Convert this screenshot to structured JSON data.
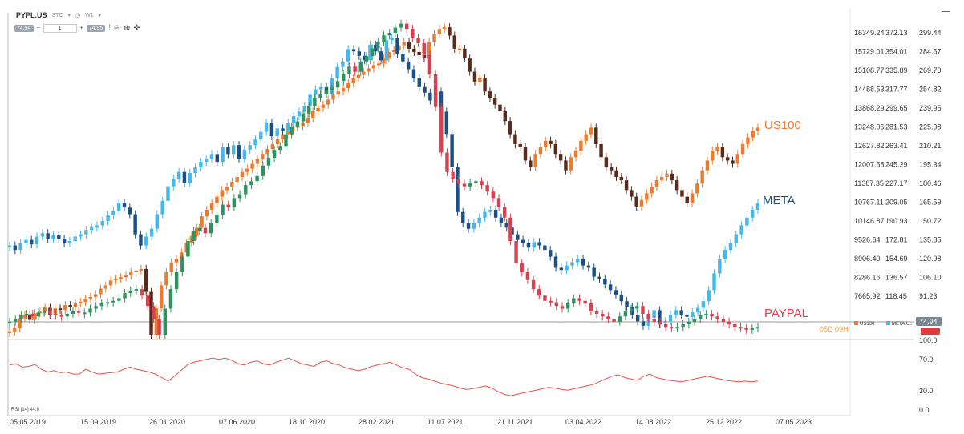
{
  "toolbar": {
    "symbol": "PYPL.US",
    "type": "STC",
    "timeframe": "W1",
    "bid": "74.94",
    "ask": "74.95",
    "qty": "1",
    "minus": "−",
    "plus": "+"
  },
  "colors": {
    "us100": "#ee7a2e",
    "meta": "#1b4f86",
    "meta_up": "#44b8ec",
    "paypal": "#d9414f",
    "paypal_up": "#2d9460",
    "us100_down": "#5a2a1a",
    "rsi": "#e8514d",
    "axis_text": "#333333",
    "grid": "#e6e6e6"
  },
  "chart_data": {
    "type": "candlestick",
    "series": [
      {
        "name": "US100",
        "scale": "left",
        "points": [
          7100,
          7200,
          7500,
          7600,
          7450,
          7650,
          7700,
          7820,
          7600,
          7800,
          7750,
          7900,
          7850,
          7950,
          8000,
          8100,
          8150,
          8230,
          8400,
          8500,
          8650,
          8700,
          8750,
          8800,
          8900,
          8950,
          9000,
          8300,
          7000,
          7800,
          8500,
          8900,
          9200,
          9300,
          9500,
          9800,
          10000,
          10250,
          10600,
          10800,
          11000,
          11200,
          11400,
          11500,
          11650,
          11800,
          11950,
          12050,
          12200,
          12350,
          12500,
          12650,
          12800,
          12950,
          13100,
          13200,
          13300,
          13350,
          13450,
          13600,
          13800,
          13900,
          14000,
          14150,
          14300,
          14400,
          14500,
          14650,
          14800,
          14900,
          15000,
          15100,
          15200,
          15250,
          15400,
          15600,
          15650,
          15800,
          15900,
          15700,
          15600,
          15500,
          15400,
          15900,
          16150,
          16300,
          16350,
          16100,
          15700,
          15700,
          15400,
          15000,
          14700,
          14800,
          14400,
          14200,
          14000,
          13800,
          13500,
          13100,
          12800,
          12700,
          12300,
          12100,
          12500,
          12700,
          12900,
          12800,
          12500,
          12300,
          12000,
          12400,
          12600,
          12900,
          13100,
          13300,
          12800,
          12400,
          12100,
          12000,
          11800,
          11700,
          11400,
          11200,
          10900,
          11100,
          11300,
          11500,
          11700,
          11800,
          11900,
          11700,
          11400,
          11200,
          11000,
          11300,
          11600,
          12000,
          12300,
          12600,
          12700,
          12400,
          12300,
          12200,
          12500,
          12800,
          13000,
          13200,
          13300
        ]
      },
      {
        "name": "META",
        "scale": "right_meta",
        "points": [
          180,
          176,
          182,
          185,
          181,
          188,
          191,
          186,
          189,
          186,
          182,
          184,
          188,
          190,
          194,
          196,
          198,
          202,
          207,
          211,
          218,
          214,
          208,
          190,
          180,
          188,
          195,
          208,
          220,
          233,
          240,
          246,
          236,
          245,
          250,
          255,
          258,
          262,
          255,
          268,
          262,
          270,
          258,
          266,
          270,
          275,
          282,
          290,
          278,
          285,
          283,
          290,
          296,
          300,
          305,
          315,
          320,
          322,
          316,
          330,
          340,
          345,
          356,
          354,
          350,
          346,
          360,
          354,
          346,
          364,
          366,
          352,
          345,
          338,
          330,
          322,
          317,
          310,
          318,
          300,
          280,
          250,
          210,
          200,
          195,
          200,
          205,
          210,
          212,
          205,
          200,
          196,
          190,
          185,
          182,
          178,
          183,
          180,
          176,
          170,
          160,
          158,
          162,
          165,
          168,
          162,
          160,
          152,
          150,
          145,
          140,
          136,
          130,
          125,
          118,
          112,
          108,
          115,
          122,
          110,
          112,
          118,
          122,
          118,
          116,
          120,
          124,
          130,
          140,
          155,
          168,
          176,
          182,
          190,
          198,
          205,
          212,
          218
        ]
      },
      {
        "name": "PAYPAL",
        "scale": "right_price",
        "points": [
          80,
          82,
          85,
          86,
          84,
          87,
          88,
          86,
          85,
          84,
          86,
          88,
          87,
          87,
          90,
          92,
          94,
          95,
          96,
          98,
          102,
          104,
          105,
          100,
          92,
          82,
          70,
          90,
          105,
          118,
          130,
          142,
          150,
          152,
          148,
          156,
          162,
          170,
          168,
          175,
          178,
          185,
          188,
          192,
          200,
          206,
          212,
          215,
          224,
          230,
          234,
          240,
          246,
          252,
          255,
          258,
          260,
          265,
          270,
          276,
          272,
          280,
          284,
          290,
          295,
          300,
          302,
          306,
          309,
          305,
          298,
          294,
          285,
          270,
          245,
          210,
          195,
          190,
          186,
          184,
          187,
          188,
          185,
          180,
          175,
          168,
          160,
          142,
          125,
          118,
          112,
          105,
          100,
          96,
          95,
          92,
          90,
          94,
          98,
          96,
          94,
          88,
          86,
          84,
          82,
          80,
          84,
          88,
          90,
          92,
          86,
          82,
          80,
          78,
          76,
          75,
          76,
          78,
          80,
          82,
          85,
          86,
          84,
          82,
          80,
          78,
          76,
          75,
          74,
          75,
          76
        ]
      }
    ],
    "rsi": {
      "label": "RSI [14]",
      "current": "44.8",
      "values": [
        68,
        70,
        65,
        66,
        69,
        62,
        58,
        60,
        57,
        58,
        55,
        55,
        62,
        58,
        55,
        56,
        57,
        58,
        62,
        65,
        62,
        60,
        58,
        55,
        50,
        45,
        52,
        60,
        68,
        72,
        74,
        76,
        78,
        76,
        78,
        75,
        70,
        68,
        72,
        74,
        70,
        68,
        72,
        75,
        78,
        74,
        70,
        68,
        66,
        72,
        74,
        70,
        68,
        64,
        62,
        60,
        62,
        66,
        68,
        70,
        72,
        68,
        64,
        62,
        55,
        50,
        48,
        45,
        42,
        40,
        38,
        35,
        33,
        34,
        36,
        38,
        35,
        30,
        26,
        24,
        26,
        28,
        30,
        32,
        34,
        36,
        35,
        33,
        32,
        34,
        36,
        38,
        40,
        44,
        48,
        52,
        54,
        50,
        48,
        46,
        52,
        55,
        50,
        48,
        46,
        45,
        44,
        46,
        48,
        50,
        52,
        50,
        48,
        46,
        45,
        44,
        45,
        44,
        45
      ]
    },
    "right_axis_labels": {
      "us100_col": [
        "16349.24",
        "15729.01",
        "15108.77",
        "14488.53",
        "13868.29",
        "13248.06",
        "12627.82",
        "12007.58",
        "11387.35",
        "10767.11",
        "10146.87",
        "9526.64",
        "8906.40",
        "8286.16",
        "7665.92"
      ],
      "meta_col": [
        "372.13",
        "354.01",
        "335.89",
        "317.77",
        "299.65",
        "281.53",
        "263.41",
        "245.29",
        "227.17",
        "209.05",
        "190.93",
        "172.81",
        "154.69",
        "136.57",
        "118.45"
      ],
      "price_col": [
        "299.44",
        "284.57",
        "269.70",
        "254.82",
        "239.95",
        "225.08",
        "210.21",
        "195.34",
        "180.46",
        "165.59",
        "150.72",
        "135.85",
        "120.98",
        "106.10",
        "91.23"
      ]
    },
    "rsi_axis_labels": [
      "100.0",
      "70.0",
      "30.0",
      "0.0"
    ],
    "x_labels": [
      "05.05.2019",
      "15.09.2019",
      "26.01.2020",
      "07.06.2020",
      "18.10.2020",
      "28.02.2021",
      "11.07.2021",
      "21.11.2021",
      "03.04.2022",
      "14.08.2022",
      "25.12.2022",
      "07.05.2023"
    ],
    "current_price_label": "74.94",
    "countdown": "05D 09H",
    "legend": {
      "us100": "US100",
      "meta": "META.U..",
      "us100_tag": "US100",
      "meta_tag": "META",
      "paypal_tag": "PAYPAL"
    }
  }
}
